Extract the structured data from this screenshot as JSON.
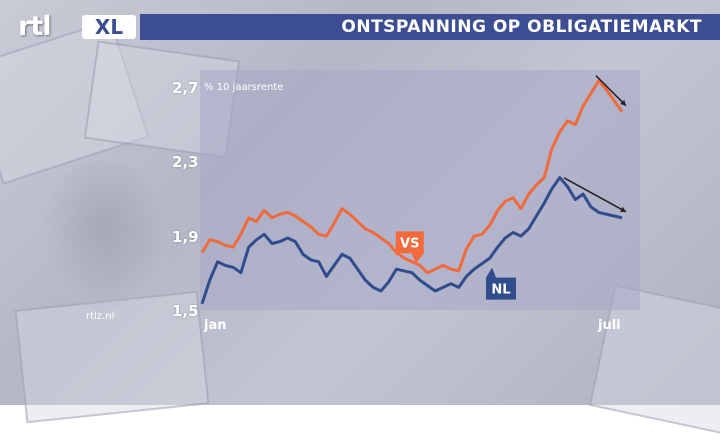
{
  "header": {
    "logo_text": "rtl",
    "logo_badge": "XL",
    "title": "ONTSPANNING OP OBLIGATIEMARKT"
  },
  "watermark": "rtlz.nl",
  "chart_data": {
    "type": "line",
    "title": "ONTSPANNING OP OBLIGATIEMARKT",
    "ylabel": "% 10 jaarsrente",
    "ylim": [
      1.5,
      2.8
    ],
    "yticks": [
      "2,7",
      "2,3",
      "1,9",
      "1,5"
    ],
    "ytick_values": [
      2.7,
      2.3,
      1.9,
      1.5
    ],
    "xlabels": [
      "jan",
      "juli"
    ],
    "grid": false,
    "series": [
      {
        "name": "VS",
        "color": "#f26a3b",
        "values": [
          1.83,
          1.9,
          1.89,
          1.87,
          1.86,
          1.93,
          2.02,
          2.0,
          2.06,
          2.02,
          2.04,
          2.05,
          2.03,
          2.0,
          1.97,
          1.93,
          1.92,
          1.99,
          2.07,
          2.04,
          2.0,
          1.96,
          1.94,
          1.91,
          1.88,
          1.83,
          1.8,
          1.78,
          1.76,
          1.72,
          1.74,
          1.76,
          1.74,
          1.73,
          1.85,
          1.92,
          1.93,
          1.98,
          2.06,
          2.11,
          2.13,
          2.07,
          2.15,
          2.2,
          2.24,
          2.4,
          2.49,
          2.55,
          2.53,
          2.63,
          2.7,
          2.77,
          2.72,
          2.66,
          2.6
        ]
      },
      {
        "name": "NL",
        "color": "#304c8c",
        "values": [
          1.55,
          1.68,
          1.78,
          1.76,
          1.75,
          1.72,
          1.86,
          1.9,
          1.93,
          1.88,
          1.89,
          1.91,
          1.89,
          1.82,
          1.79,
          1.78,
          1.7,
          1.76,
          1.82,
          1.8,
          1.74,
          1.68,
          1.64,
          1.62,
          1.67,
          1.74,
          1.73,
          1.72,
          1.68,
          1.65,
          1.62,
          1.64,
          1.66,
          1.64,
          1.7,
          1.74,
          1.77,
          1.8,
          1.86,
          1.91,
          1.94,
          1.92,
          1.96,
          2.03,
          2.1,
          2.18,
          2.24,
          2.19,
          2.12,
          2.15,
          2.08,
          2.05,
          2.04,
          2.03,
          2.02
        ]
      }
    ],
    "trend_arrows": "down at end of both series"
  }
}
